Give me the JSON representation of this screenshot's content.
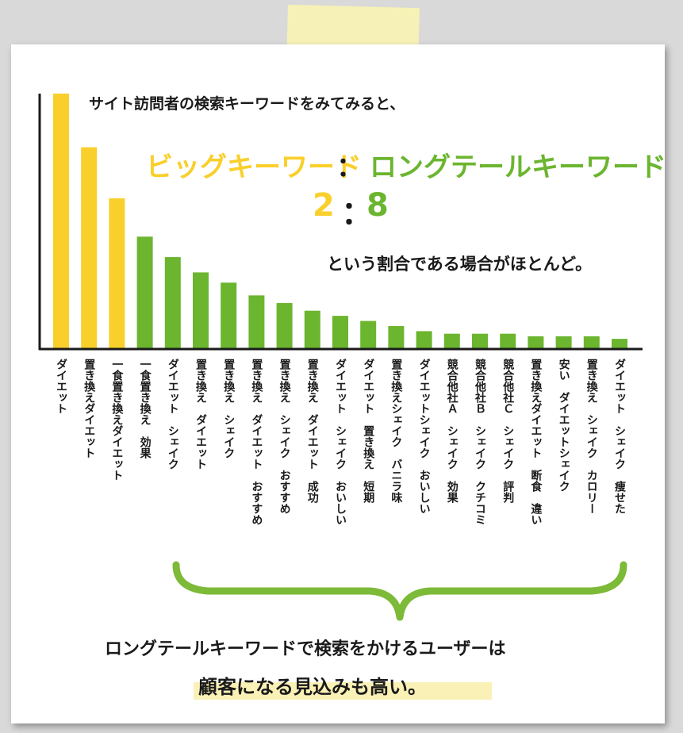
{
  "intro_text": "サイト訪問者の検索キーワードをみてみると、",
  "big_keyword_label": "ビッグキーワード",
  "colon": "：",
  "long_keyword_label": "ロングテールキーワード",
  "ratio_big": "2",
  "ratio_long": "8",
  "ratio_description": "という割合である場合がほとんど。",
  "conclusion_line1": "ロングテールキーワードで検索をかけるユーザーは",
  "conclusion_line2": "顧客になる見込みも高い。",
  "colors": {
    "big_keyword": "#f9cf2b",
    "long_tail": "#6bb52f",
    "axis": "#1a1a1a",
    "tape": "#faf3ae",
    "highlight": "#faf1b6"
  },
  "chart_data": {
    "type": "bar",
    "title": "",
    "xlabel": "",
    "ylabel": "",
    "ylim": [
      0,
      100
    ],
    "y_ticks": false,
    "grid": false,
    "categories": [
      "ダイエット",
      "置き換えダイエット",
      "一食置き換えダイエット",
      "一食置き換え　効果",
      "ダイエット　シェイク",
      "置き換え　ダイエット",
      "置き換え　シェイク",
      "置き換え　ダイエット　おすすめ",
      "置き換え　シェイク　おすすめ",
      "置き換え　ダイエット　成功",
      "ダイエット　シェイク　おいしい",
      "ダイエット　置き換え　短期",
      "置き換えシェイク　バニラ味",
      "ダイエットシェイク　おいしい",
      "競合他社Ａ　シェイク　効果",
      "競合他社Ｂ　シェイク　クチコミ",
      "競合他社Ｃ　シェイク　評判",
      "置き換えダイエット　断食　違い",
      "安い　ダイエットシェイク",
      "置き換え　シェイク　カロリー",
      "ダイエット　シェイク　痩せた"
    ],
    "values": [
      100,
      79,
      59,
      44,
      36,
      30,
      26,
      21,
      18,
      15,
      13,
      11,
      9,
      7,
      6,
      6,
      6,
      5,
      5,
      5,
      4
    ],
    "groups": [
      "big",
      "big",
      "big",
      "long",
      "long",
      "long",
      "long",
      "long",
      "long",
      "long",
      "long",
      "long",
      "long",
      "long",
      "long",
      "long",
      "long",
      "long",
      "long",
      "long",
      "long"
    ],
    "annotation": "brace spanning long-tail keywords"
  }
}
